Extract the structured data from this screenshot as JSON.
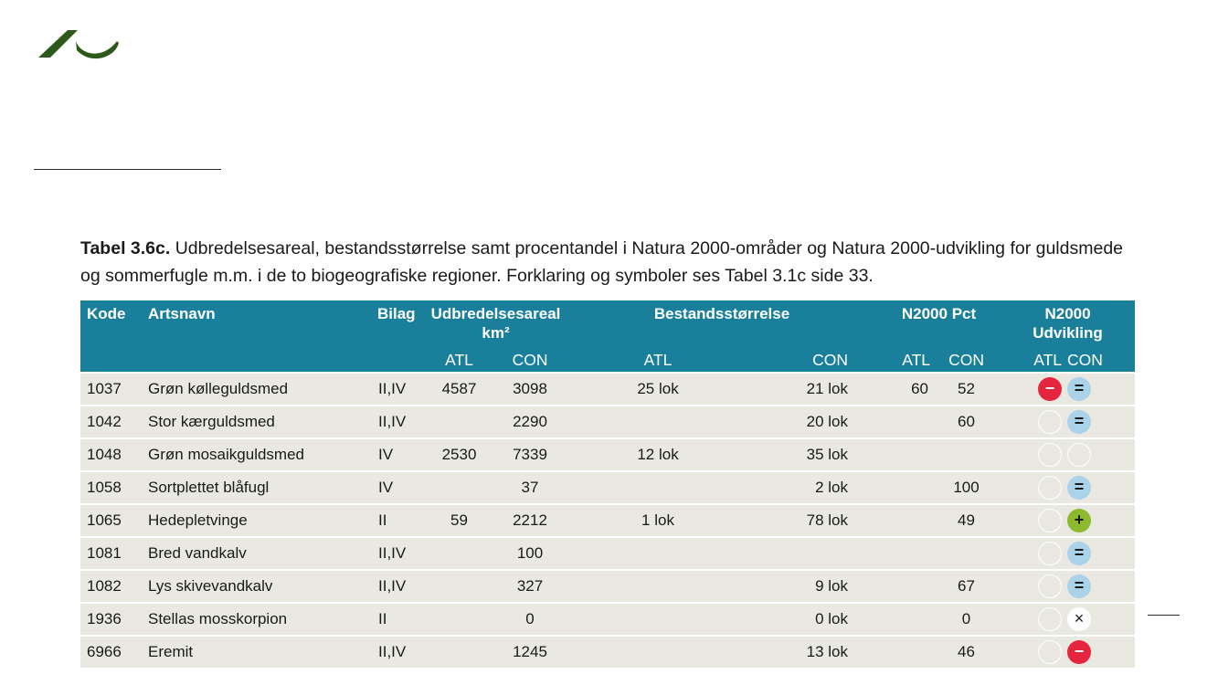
{
  "caption": {
    "label": "Tabel 3.6c.",
    "text": " Udbredelsesareal, bestandsstørrelse samt procentandel i Natura 2000-områder og Natura 2000-udvikling for guldsmede og sommerfugle m.m. i de to biogeografiske regioner. Forklaring og symboler ses Tabel 3.1c side 33."
  },
  "colors": {
    "header_bg": "#1a7f9a",
    "row_bg": "#e9e9e1",
    "logo": "#2d5a1b",
    "minus": "#e5253d",
    "equal": "#aad3ea",
    "plus": "#8db92e"
  },
  "table": {
    "headers": {
      "kode": "Kode",
      "artsnavn": "Artsnavn",
      "bilag": "Bilag",
      "udbredelse": "Udbredelsesareal km²",
      "bestand": "Bestandsstørrelse",
      "n2000_pct": "N2000 Pct",
      "n2000_udv": "N2000 Udvikling",
      "atl": "ATL",
      "con": "CON"
    },
    "rows": [
      {
        "kode": "1037",
        "navn": "Grøn kølleguldsmed",
        "bilag": "II,IV",
        "ud_atl": "4587",
        "ud_con": "3098",
        "be_atl": "25 lok",
        "be_con": "21 lok",
        "pct_atl": "60",
        "pct_con": "52",
        "udv_atl": "minus",
        "udv_con": "equal"
      },
      {
        "kode": "1042",
        "navn": "Stor kærguldsmed",
        "bilag": "II,IV",
        "ud_atl": "",
        "ud_con": "2290",
        "be_atl": "",
        "be_con": "20 lok",
        "pct_atl": "",
        "pct_con": "60",
        "udv_atl": "empty",
        "udv_con": "equal"
      },
      {
        "kode": "1048",
        "navn": "Grøn mosaikguldsmed",
        "bilag": "IV",
        "ud_atl": "2530",
        "ud_con": "7339",
        "be_atl": "12 lok",
        "be_con": "35 lok",
        "pct_atl": "",
        "pct_con": "",
        "udv_atl": "empty",
        "udv_con": "empty"
      },
      {
        "kode": "1058",
        "navn": "Sortplettet blåfugl",
        "bilag": "IV",
        "ud_atl": "",
        "ud_con": "37",
        "be_atl": "",
        "be_con": "2 lok",
        "pct_atl": "",
        "pct_con": "100",
        "udv_atl": "empty",
        "udv_con": "equal"
      },
      {
        "kode": "1065",
        "navn": "Hedepletvinge",
        "bilag": "II",
        "ud_atl": "59",
        "ud_con": "2212",
        "be_atl": "1 lok",
        "be_con": "78 lok",
        "pct_atl": "",
        "pct_con": "49",
        "udv_atl": "empty",
        "udv_con": "plus"
      },
      {
        "kode": "1081",
        "navn": "Bred vandkalv",
        "bilag": "II,IV",
        "ud_atl": "",
        "ud_con": "100",
        "be_atl": "",
        "be_con": "",
        "pct_atl": "",
        "pct_con": "",
        "udv_atl": "empty",
        "udv_con": "equal"
      },
      {
        "kode": "1082",
        "navn": "Lys skivevandkalv",
        "bilag": "II,IV",
        "ud_atl": "",
        "ud_con": "327",
        "be_atl": "",
        "be_con": "9 lok",
        "pct_atl": "",
        "pct_con": "67",
        "udv_atl": "empty",
        "udv_con": "equal"
      },
      {
        "kode": "1936",
        "navn": "Stellas mosskorpion",
        "bilag": "II",
        "ud_atl": "",
        "ud_con": "0",
        "be_atl": "",
        "be_con": "0 lok",
        "pct_atl": "",
        "pct_con": "0",
        "udv_atl": "empty",
        "udv_con": "unknown"
      },
      {
        "kode": "6966",
        "navn": "Eremit",
        "bilag": "II,IV",
        "ud_atl": "",
        "ud_con": "1245",
        "be_atl": "",
        "be_con": "13 lok",
        "pct_atl": "",
        "pct_con": "46",
        "udv_atl": "empty",
        "udv_con": "minus"
      }
    ]
  },
  "symbols": {
    "minus": "−",
    "equal": "=",
    "plus": "+",
    "unknown": "×",
    "empty": ""
  }
}
